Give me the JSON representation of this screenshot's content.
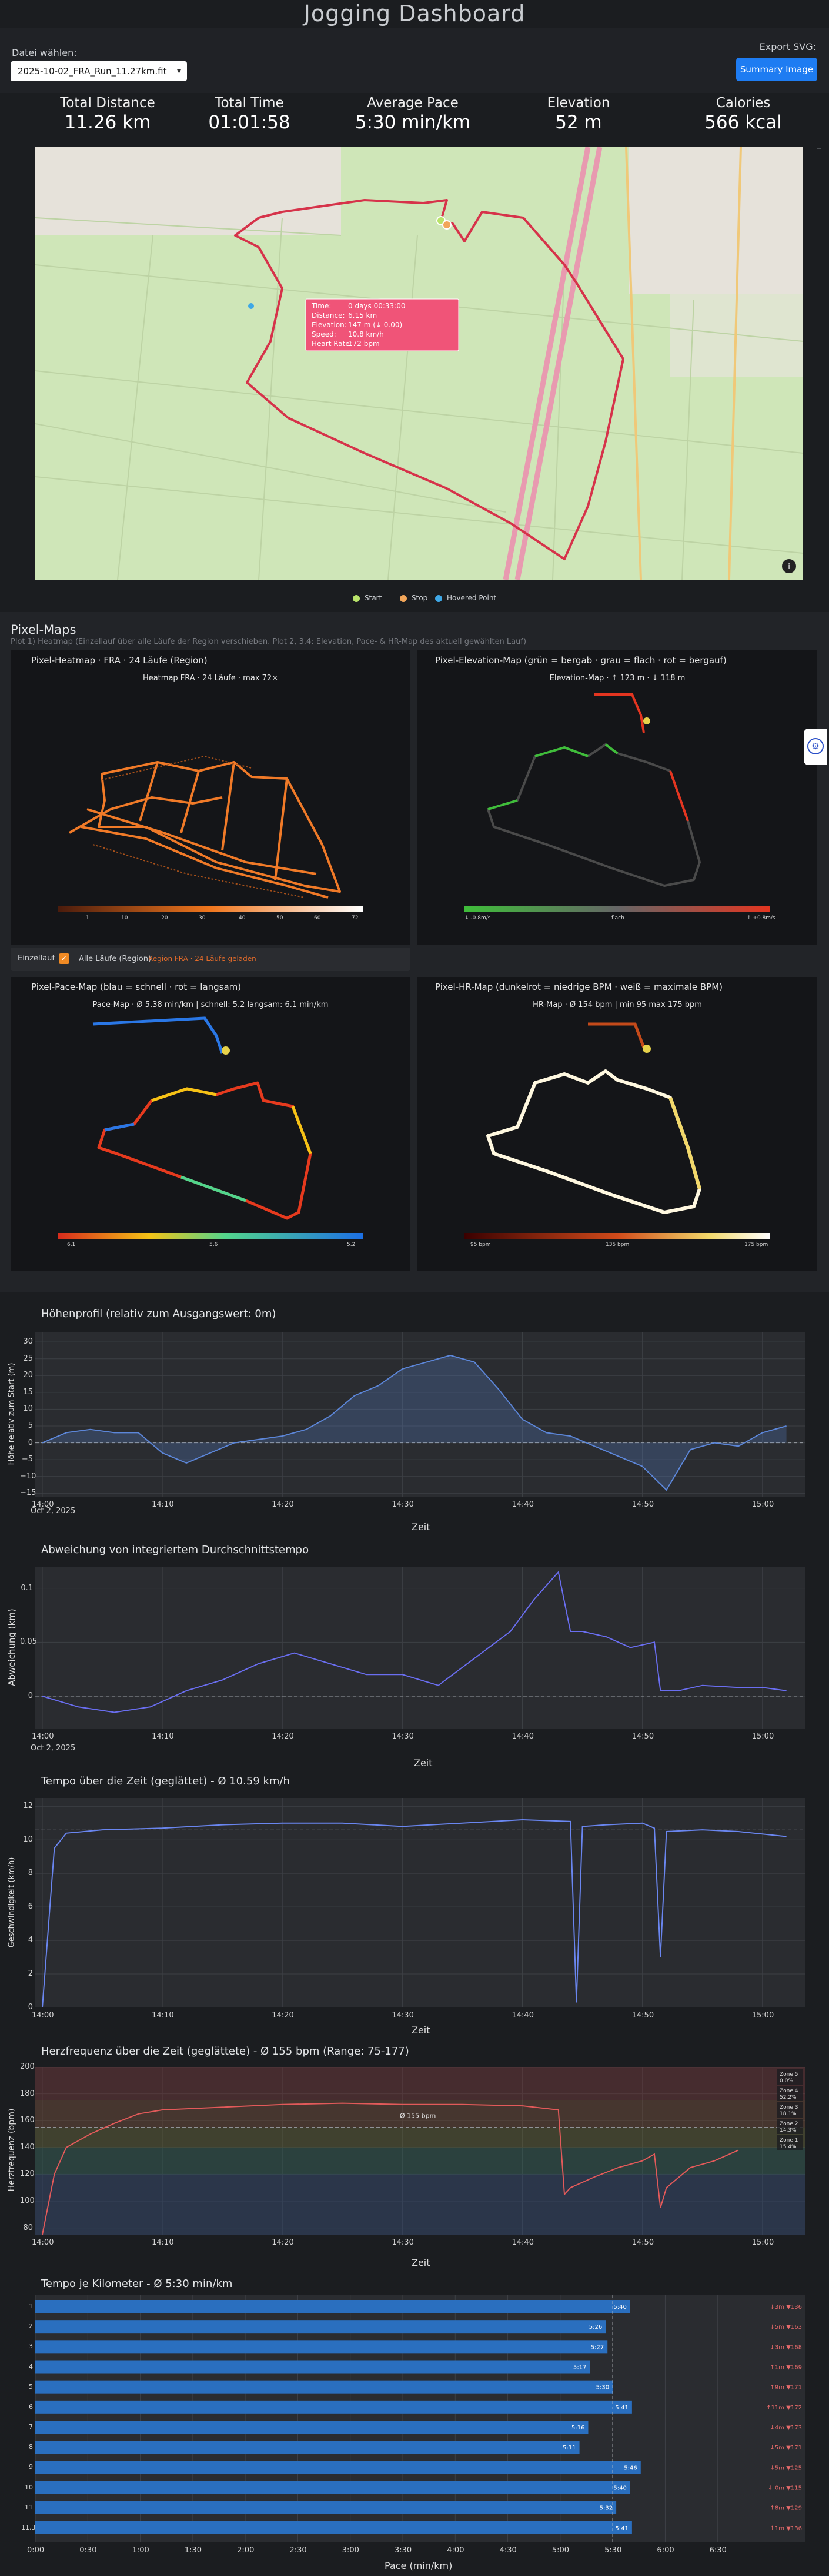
{
  "header": {
    "title": "Jogging Dashboard"
  },
  "file": {
    "label": "Datei wählen:",
    "selected": "2025-10-02_FRA_Run_11.27km.fit"
  },
  "export": {
    "label": "Export SVG:",
    "button": "Summary Image"
  },
  "stats": [
    {
      "label": "Total Distance",
      "value": "11.26 km"
    },
    {
      "label": "Total Time",
      "value": "01:01:58"
    },
    {
      "label": "Average Pace",
      "value": "5:30 min/km"
    },
    {
      "label": "Elevation",
      "value": "52 m"
    },
    {
      "label": "Calories",
      "value": "566 kcal"
    }
  ],
  "map": {
    "tooltip": {
      "time": "Time:",
      "time_v": "0 days 00:33:00",
      "dist": "Distance:",
      "dist_v": "6.15 km",
      "elev": "Elevation:",
      "elev_v": "147 m (↓ 0.00)",
      "speed": "Speed:",
      "speed_v": "10.8 km/h",
      "hr": "Heart Rate:",
      "hr_v": "172 bpm"
    },
    "legend": [
      {
        "label": "Start",
        "color": "#b9e36a"
      },
      {
        "label": "Stop",
        "color": "#f2a65a"
      },
      {
        "label": "Hovered Point",
        "color": "#3fa8e6"
      }
    ],
    "corner": "−"
  },
  "pixel_maps": {
    "title": "Pixel-Maps",
    "subtitle": "Plot 1) Heatmap (Einzellauf über alle Läufe der Region verschieben. Plot 2, 3,4: Elevation, Pace- & HR-Map des aktuell gewählten Lauf)",
    "heatmap": {
      "title": "Pixel-Heatmap · FRA · 24 Läufe (Region)",
      "mini": "Heatmap FRA · 24 Läufe · max 72×",
      "ticks": [
        "1",
        "10",
        "20",
        "30",
        "40",
        "50",
        "60",
        "72"
      ]
    },
    "elevation": {
      "title": "Pixel-Elevation-Map (grün = bergab · grau = flach · rot = bergauf)",
      "mini": "Elevation-Map · ↑ 123 m · ↓ 118 m",
      "ticks": [
        "↓ -0.8m/s",
        "flach",
        "↑ +0.8m/s"
      ]
    },
    "controls": {
      "label": "Einzellauf",
      "check": "✓",
      "all": "Alle Läufe (Region)",
      "region": "Region FRA · 24 Läufe geladen"
    },
    "pace": {
      "title": "Pixel-Pace-Map (blau = schnell · rot = langsam)",
      "mini": "Pace-Map · Ø 5.38 min/km  |  schnell: 5.2  langsam: 6.1 min/km",
      "ticks": [
        "6.1",
        "5.6",
        "5.2"
      ]
    },
    "hr": {
      "title": "Pixel-HR-Map (dunkelrot = niedrige BPM · weiß = maximale BPM)",
      "mini": "HR-Map · Ø 154 bpm  |  min 95  max 175 bpm",
      "ticks": [
        "95 bpm",
        "135 bpm",
        "175 bpm"
      ]
    }
  },
  "elevation_plot": {
    "title": "Höhenprofil (relativ zum Ausgangswert: 0m)",
    "ylabel": "Höhe relativ zum Start (m)",
    "xlabel": "Zeit",
    "yticks": [
      "30",
      "25",
      "20",
      "15",
      "10",
      "5",
      "0",
      "−5",
      "−10",
      "−15"
    ],
    "xticks": [
      "14:00",
      "14:10",
      "14:20",
      "14:30",
      "14:40",
      "14:50",
      "15:00"
    ],
    "xdate": "Oct 2, 2025"
  },
  "deviation_plot": {
    "title": "Abweichung von integriertem Durchschnittstempo",
    "ylabel": "Abweichung (km)",
    "xlabel": "Zeit",
    "yticks": [
      "0.1",
      "0.05",
      "0"
    ],
    "xticks": [
      "14:00",
      "14:10",
      "14:20",
      "14:30",
      "14:40",
      "14:50",
      "15:00"
    ],
    "xdate": "Oct 2, 2025"
  },
  "speed_plot": {
    "title": "Tempo über die Zeit (geglättet) - Ø 10.59 km/h",
    "ylabel": "Geschwindigkeit (km/h)",
    "xlabel": "Zeit",
    "yticks": [
      "12",
      "10",
      "8",
      "6",
      "4",
      "2",
      "0"
    ],
    "xticks": [
      "14:00",
      "14:10",
      "14:20",
      "14:30",
      "14:40",
      "14:50",
      "15:00"
    ]
  },
  "hr_plot": {
    "title": "Herzfrequenz über die Zeit (geglättete) - Ø 155 bpm (Range: 75-177)",
    "ylabel": "Herzfrequenz (bpm)",
    "xlabel": "Zeit",
    "yticks": [
      "200",
      "180",
      "160",
      "140",
      "120",
      "100",
      "80"
    ],
    "xticks": [
      "14:00",
      "14:10",
      "14:20",
      "14:30",
      "14:40",
      "14:50",
      "15:00"
    ],
    "avg": "Ø 155 bpm",
    "zones": [
      {
        "label": "Zone 5",
        "pct": "0.0%"
      },
      {
        "label": "Zone 4",
        "pct": "52.2%"
      },
      {
        "label": "Zone 3",
        "pct": "18.1%"
      },
      {
        "label": "Zone 2",
        "pct": "14.3%"
      },
      {
        "label": "Zone 1",
        "pct": "15.4%"
      }
    ]
  },
  "km_plot": {
    "title": "Tempo je Kilometer - Ø 5:30 min/km",
    "xlabel": "Pace (min/km)",
    "xticks": [
      "0:00",
      "0:30",
      "1:00",
      "1:30",
      "2:00",
      "2:30",
      "3:00",
      "3:30",
      "4:00",
      "4:30",
      "5:00",
      "5:30",
      "6:00",
      "6:30"
    ]
  },
  "chart_data": [
    {
      "type": "line",
      "title": "Höhenprofil (relativ zum Ausgangswert: 0m)",
      "xlabel": "Zeit",
      "ylabel": "Höhe relativ zum Start (m)",
      "ylim": [
        -16,
        33
      ],
      "x_minutes": [
        0,
        2,
        4,
        6,
        8,
        10,
        12,
        14,
        16,
        18,
        20,
        22,
        24,
        26,
        28,
        30,
        32,
        34,
        36,
        38,
        40,
        42,
        44,
        46,
        48,
        50,
        52,
        54,
        56,
        58,
        60,
        62
      ],
      "y": [
        0,
        3,
        4,
        3,
        3,
        -3,
        -6,
        -3,
        0,
        1,
        2,
        4,
        8,
        14,
        17,
        22,
        24,
        26,
        24,
        16,
        7,
        3,
        2,
        -1,
        -4,
        -7,
        -14,
        -2,
        0,
        -1,
        3,
        5
      ]
    },
    {
      "type": "line",
      "title": "Abweichung von integriertem Durchschnittstempo",
      "xlabel": "Zeit",
      "ylabel": "Abweichung (km)",
      "ylim": [
        -0.03,
        0.12
      ],
      "x_minutes": [
        0,
        3,
        6,
        9,
        12,
        15,
        18,
        21,
        24,
        27,
        30,
        33,
        36,
        39,
        41,
        43,
        44,
        45,
        47,
        49,
        51,
        51.5,
        53,
        55,
        58,
        60,
        62
      ],
      "y": [
        0,
        -0.01,
        -0.015,
        -0.01,
        0.005,
        0.015,
        0.03,
        0.04,
        0.03,
        0.02,
        0.02,
        0.01,
        0.035,
        0.06,
        0.09,
        0.115,
        0.06,
        0.06,
        0.055,
        0.045,
        0.05,
        0.005,
        0.005,
        0.01,
        0.008,
        0.008,
        0.005
      ]
    },
    {
      "type": "line",
      "title": "Tempo über die Zeit (geglättet) - Ø 10.59 km/h",
      "xlabel": "Zeit",
      "ylabel": "Geschwindigkeit (km/h)",
      "ylim": [
        0,
        12.5
      ],
      "x_minutes": [
        0,
        1,
        2,
        5,
        10,
        15,
        20,
        25,
        30,
        35,
        40,
        44,
        44.5,
        45,
        47,
        50,
        51,
        51.5,
        52,
        55,
        58,
        62
      ],
      "y": [
        0,
        9.5,
        10.4,
        10.6,
        10.7,
        10.9,
        11.0,
        11.0,
        10.8,
        11.0,
        11.2,
        11.1,
        0.3,
        10.8,
        10.9,
        11.0,
        10.7,
        3.0,
        10.5,
        10.6,
        10.5,
        10.2
      ]
    },
    {
      "type": "line",
      "title": "Herzfrequenz über die Zeit (geglättete) - Ø 155 bpm (Range: 75-177)",
      "xlabel": "Zeit",
      "ylabel": "Herzfrequenz (bpm)",
      "ylim": [
        75,
        200
      ],
      "x_minutes": [
        0,
        1,
        2,
        4,
        6,
        8,
        10,
        15,
        20,
        25,
        30,
        35,
        40,
        43,
        43.5,
        44,
        46,
        48,
        50,
        51,
        51.5,
        52,
        54,
        56,
        58
      ],
      "y": [
        75,
        120,
        140,
        150,
        158,
        165,
        168,
        170,
        172,
        173,
        172,
        172,
        171,
        168,
        105,
        110,
        118,
        125,
        130,
        135,
        95,
        110,
        125,
        130,
        138
      ]
    },
    {
      "type": "bar",
      "title": "Tempo je Kilometer - Ø 5:30 min/km",
      "xlabel": "Pace (min/km)",
      "categories": [
        "1",
        "2",
        "3",
        "4",
        "5",
        "6",
        "7",
        "8",
        "9",
        "10",
        "11",
        "11.3"
      ],
      "values_seconds": [
        340,
        326,
        327,
        317,
        330,
        341,
        316,
        311,
        346,
        340,
        332,
        341
      ],
      "labels": [
        "5:40",
        "5:26",
        "5:27",
        "5:17",
        "5:30",
        "5:41",
        "5:16",
        "5:11",
        "5:46",
        "5:40",
        "5:32",
        "5:41"
      ],
      "elev": [
        "↓3m ▼136",
        "↓5m ▼163",
        "↓3m ▼168",
        "↑1m ▼169",
        "↑9m ▼171",
        "↑11m ▼172",
        "↓4m ▼173",
        "↓5m ▼171",
        "↓5m ▼125",
        "↓-0m ▼115",
        "↑8m ▼129",
        "↑1m ▼136"
      ]
    }
  ]
}
